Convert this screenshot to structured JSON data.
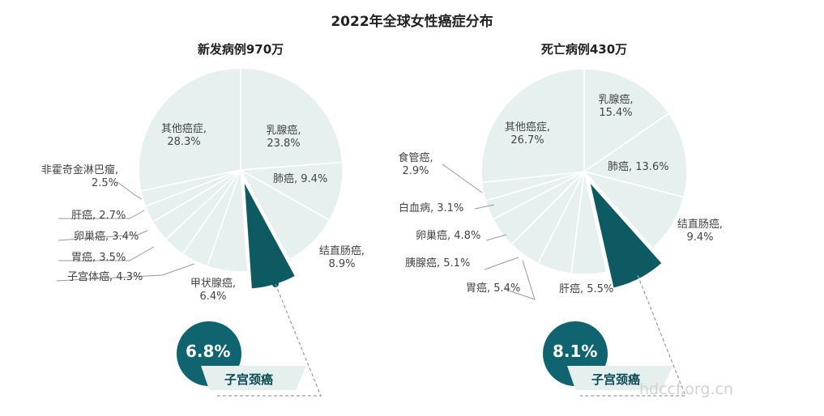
{
  "title": "2022年全球女性癌症分布",
  "watermark": "hdccf.org.cn",
  "colors": {
    "slice": "#e6f0ef",
    "highlight": "#0d5a63",
    "callout_circle": "#0f6470",
    "callout_banner": "#e4efee"
  },
  "chart_data": [
    {
      "type": "pie",
      "title": "新发病例970万",
      "highlight": "子宫颈癌",
      "callout": {
        "value": "6.8%",
        "label": "子宫颈癌"
      },
      "slices": [
        {
          "label": "乳腺癌",
          "value": 23.8,
          "text": "乳腺癌,",
          "pct": "23.8%"
        },
        {
          "label": "肺癌",
          "value": 9.4,
          "text": "肺癌, 9.4%"
        },
        {
          "label": "结直肠癌",
          "value": 8.9,
          "text": "结直肠癌,",
          "pct": "8.9%"
        },
        {
          "label": "子宫颈癌",
          "value": 6.8
        },
        {
          "label": "甲状腺癌",
          "value": 6.4,
          "text": "甲状腺癌,",
          "pct": "6.4%"
        },
        {
          "label": "子宫体癌",
          "value": 4.3,
          "text": "子宫体癌, 4.3%"
        },
        {
          "label": "胃癌",
          "value": 3.5,
          "text": "胃癌, 3.5%"
        },
        {
          "label": "卵巢癌",
          "value": 3.4,
          "text": "卵巢癌, 3.4%"
        },
        {
          "label": "肝癌",
          "value": 2.7,
          "text": "肝癌, 2.7%"
        },
        {
          "label": "非霍奇金淋巴瘤",
          "value": 2.5,
          "text": "非霍奇金淋巴瘤,",
          "pct": "2.5%"
        },
        {
          "label": "其他癌症",
          "value": 28.3,
          "text": "其他癌症,",
          "pct": "28.3%"
        }
      ]
    },
    {
      "type": "pie",
      "title": "死亡病例430万",
      "highlight": "子宫颈癌",
      "callout": {
        "value": "8.1%",
        "label": "子宫颈癌"
      },
      "slices": [
        {
          "label": "乳腺癌",
          "value": 15.4,
          "text": "乳腺癌,",
          "pct": "15.4%"
        },
        {
          "label": "肺癌",
          "value": 13.6,
          "text": "肺癌, 13.6%"
        },
        {
          "label": "结直肠癌",
          "value": 9.4,
          "text": "结直肠癌,",
          "pct": "9.4%"
        },
        {
          "label": "子宫颈癌",
          "value": 8.1
        },
        {
          "label": "肝癌",
          "value": 5.5,
          "text": "肝癌, 5.5%"
        },
        {
          "label": "胃癌",
          "value": 5.4,
          "text": "胃癌, 5.4%"
        },
        {
          "label": "胰腺癌",
          "value": 5.1,
          "text": "胰腺癌, 5.1%"
        },
        {
          "label": "卵巢癌",
          "value": 4.8,
          "text": "卵巢癌, 4.8%"
        },
        {
          "label": "白血病",
          "value": 3.1,
          "text": "白血病, 3.1%"
        },
        {
          "label": "食管癌",
          "value": 2.9,
          "text": "食管癌,",
          "pct": "2.9%"
        },
        {
          "label": "其他癌症",
          "value": 26.7,
          "text": "其他癌症,",
          "pct": "26.7%"
        }
      ]
    }
  ]
}
